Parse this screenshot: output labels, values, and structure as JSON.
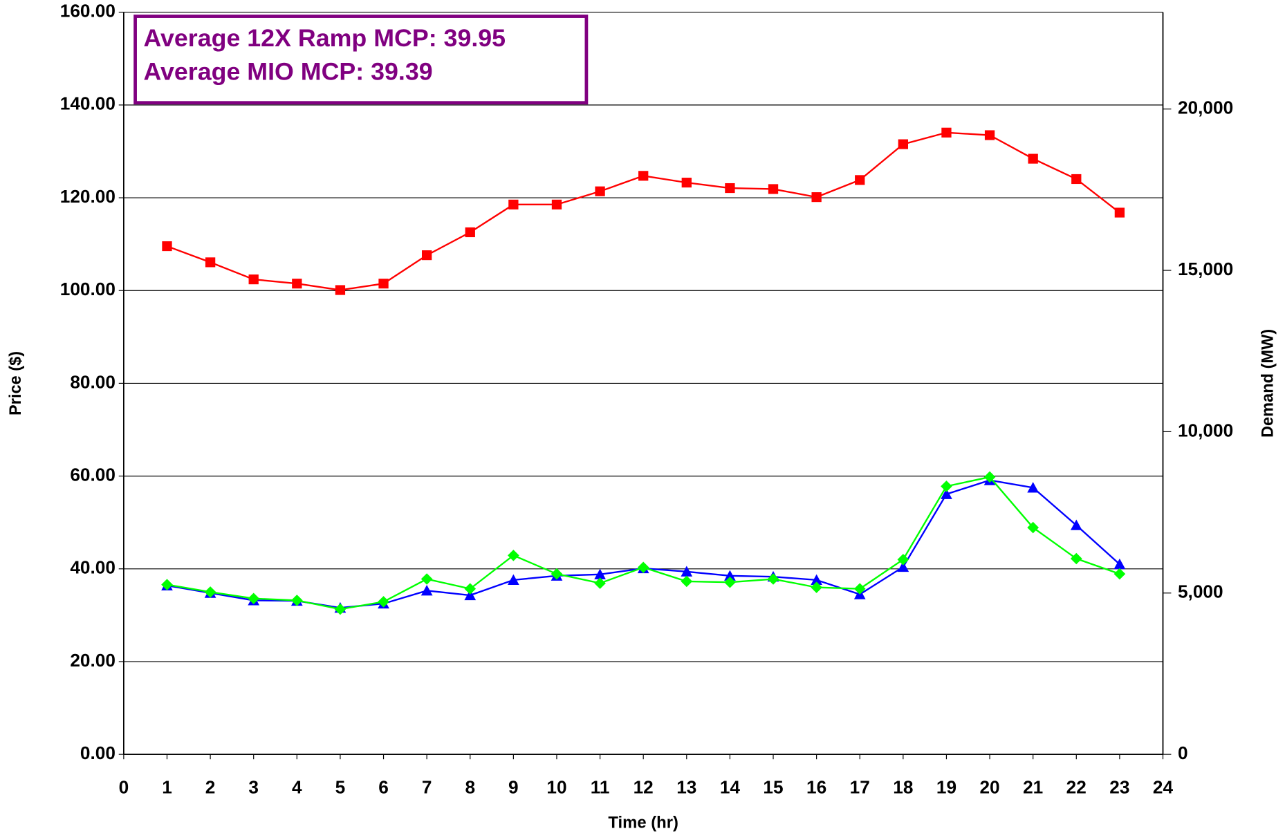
{
  "chart_data": {
    "type": "line",
    "annotations": [
      "Average 12X Ramp MCP: 39.95",
      "Average MIO MCP: 39.39"
    ],
    "xlabel": "Time (hr)",
    "ylabel": "Price ($)",
    "y2label": "Demand (MW)",
    "x": [
      1,
      2,
      3,
      4,
      5,
      6,
      7,
      8,
      9,
      10,
      11,
      12,
      13,
      14,
      15,
      16,
      17,
      18,
      19,
      20,
      21,
      22,
      23
    ],
    "xlim": [
      0,
      24
    ],
    "xticks": [
      0,
      1,
      2,
      3,
      4,
      5,
      6,
      7,
      8,
      9,
      10,
      11,
      12,
      13,
      14,
      15,
      16,
      17,
      18,
      19,
      20,
      21,
      22,
      23,
      24
    ],
    "ylim": [
      0,
      160
    ],
    "yticks": [
      {
        "value": 0,
        "label": "0.00"
      },
      {
        "value": 20,
        "label": "20.00"
      },
      {
        "value": 40,
        "label": "40.00"
      },
      {
        "value": 60,
        "label": "60.00"
      },
      {
        "value": 80,
        "label": "80.00"
      },
      {
        "value": 100,
        "label": "100.00"
      },
      {
        "value": 120,
        "label": "120.00"
      },
      {
        "value": 140,
        "label": "140.00"
      },
      {
        "value": 160,
        "label": "160.00"
      }
    ],
    "y2lim": [
      0,
      23000
    ],
    "y2ticks": [
      0,
      {
        "value": 5000,
        "label": "5,000"
      },
      {
        "value": 10000,
        "label": "10,000"
      },
      {
        "value": 15000,
        "label": "15,000"
      },
      {
        "value": 20000,
        "label": "20,000"
      }
    ],
    "grid": true,
    "series": [
      {
        "color": "#ff0000",
        "marker": "square",
        "axis": "y2",
        "values": [
          15750,
          15250,
          14720,
          14590,
          14390,
          14590,
          15470,
          16180,
          17040,
          17040,
          17450,
          17930,
          17720,
          17550,
          17520,
          17270,
          17800,
          18910,
          19270,
          19190,
          18460,
          17830,
          16790
        ]
      },
      {
        "color": "#0000ff",
        "marker": "triangle",
        "values": [
          36.4,
          34.8,
          33.2,
          33.1,
          31.6,
          32.5,
          35.3,
          34.3,
          37.6,
          38.5,
          38.8,
          40.1,
          39.4,
          38.5,
          38.3,
          37.6,
          34.5,
          40.4,
          56.1,
          59.1,
          57.5,
          49.4,
          41.0
        ]
      },
      {
        "color": "#00ff00",
        "marker": "diamond",
        "values": [
          36.6,
          35.0,
          33.6,
          33.2,
          31.3,
          32.9,
          37.8,
          35.7,
          42.9,
          38.9,
          36.9,
          40.3,
          37.3,
          37.1,
          37.8,
          36.0,
          35.7,
          42.0,
          57.8,
          59.8,
          48.9,
          42.2,
          38.9
        ]
      }
    ]
  }
}
